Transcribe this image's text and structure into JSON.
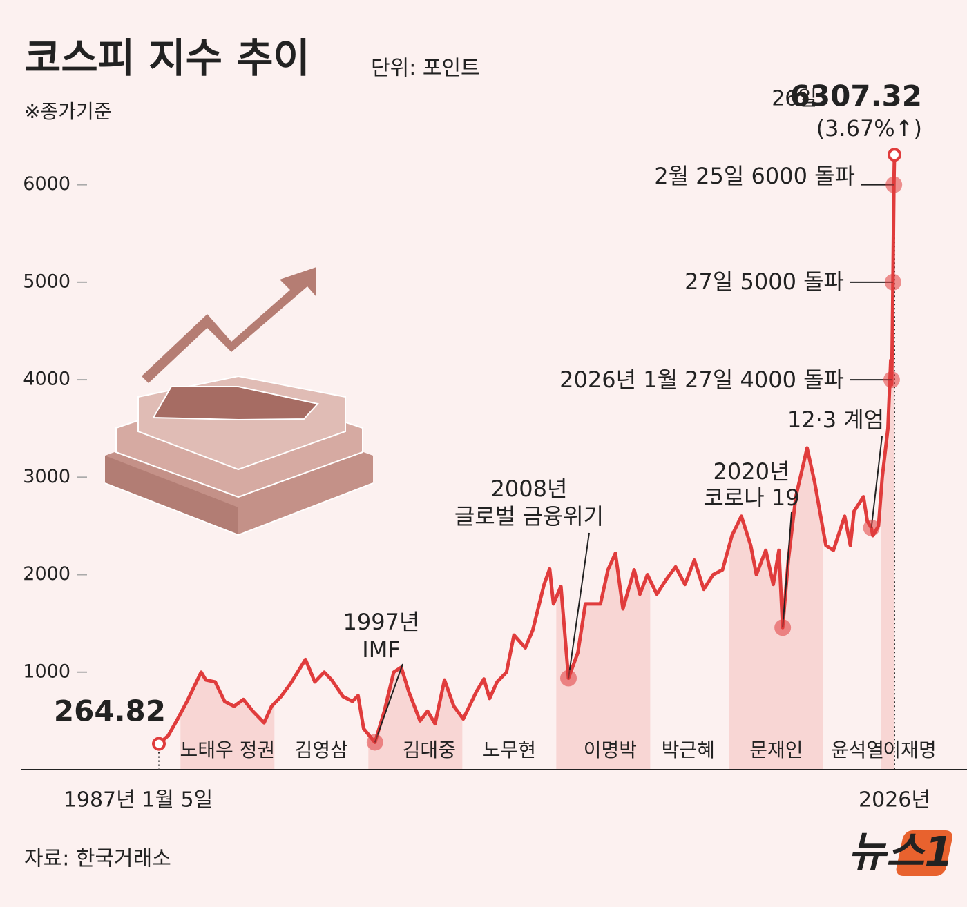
{
  "chart_data": {
    "type": "line",
    "title": "코스피 지수 추이",
    "unit": "단위: 포인트",
    "note": "※종가기준",
    "source": "자료: 한국거래소",
    "logo": "뉴스1",
    "color": "#e03c3c",
    "ylim": [
      0,
      6500
    ],
    "yticks": [
      1000,
      2000,
      3000,
      4000,
      5000,
      6000
    ],
    "xlim": [
      1987,
      2026.15
    ],
    "xticks": [
      {
        "value": 1987,
        "label": "1987년 1월 5일"
      },
      {
        "value": 2026.15,
        "label": "2026년"
      }
    ],
    "x": [
      1987,
      1987.5,
      1988,
      1988.5,
      1989.25,
      1989.5,
      1990,
      1990.5,
      1991,
      1991.5,
      1992,
      1992.6,
      1993,
      1993.5,
      1994,
      1994.8,
      1995.3,
      1995.8,
      1996.2,
      1996.8,
      1997.3,
      1997.6,
      1997.9,
      1998.5,
      1999,
      1999.5,
      1999.9,
      2000.3,
      2000.9,
      2001.3,
      2001.7,
      2002.2,
      2002.7,
      2003.2,
      2003.9,
      2004.3,
      2004.6,
      2005,
      2005.5,
      2005.9,
      2006.5,
      2006.9,
      2007.5,
      2007.8,
      2008,
      2008.4,
      2008.8,
      2009.3,
      2009.7,
      2010.5,
      2010.9,
      2011.3,
      2011.7,
      2012.3,
      2012.6,
      2013,
      2013.5,
      2014,
      2014.5,
      2015,
      2015.5,
      2016,
      2016.5,
      2017,
      2017.5,
      2018,
      2018.5,
      2018.8,
      2019.3,
      2019.7,
      2020,
      2020.2,
      2020.5,
      2020.9,
      2021.5,
      2021.9,
      2022.5,
      2022.9,
      2023.5,
      2023.8,
      2024,
      2024.5,
      2024.7,
      2024.92,
      2025,
      2025.3,
      2025.5,
      2025.8,
      2025.95,
      2026,
      2026.04,
      2026.07,
      2026.12,
      2026.15
    ],
    "values": [
      264.82,
      350,
      520,
      700,
      1000,
      920,
      900,
      700,
      650,
      720,
      600,
      480,
      650,
      750,
      880,
      1130,
      900,
      1000,
      920,
      750,
      700,
      760,
      420,
      280,
      600,
      1000,
      1050,
      800,
      500,
      600,
      470,
      920,
      650,
      520,
      800,
      930,
      730,
      900,
      1000,
      1380,
      1250,
      1430,
      1900,
      2060,
      1700,
      1880,
      938,
      1200,
      1700,
      1700,
      2050,
      2220,
      1650,
      2050,
      1800,
      2000,
      1800,
      1950,
      2080,
      1900,
      2150,
      1850,
      2000,
      2050,
      2400,
      2600,
      2300,
      2000,
      2250,
      1900,
      2250,
      1457,
      2150,
      2800,
      3300,
      2950,
      2300,
      2250,
      2600,
      2300,
      2650,
      2800,
      2550,
      2480,
      2400,
      2500,
      3000,
      3500,
      4200,
      3950,
      4500,
      5000,
      6000,
      6307.32
    ],
    "end_day": "26일",
    "end_change": "(3.67%↑)",
    "periods": [
      {
        "name": "노태우 정권",
        "start": 1988.15,
        "end": 1993.15,
        "shaded": true
      },
      {
        "name": "김영삼",
        "start": 1993.15,
        "end": 1998.15,
        "shaded": false
      },
      {
        "name": "김대중",
        "start": 1998.15,
        "end": 2003.15,
        "shaded": true
      },
      {
        "name": "노무현",
        "start": 2003.15,
        "end": 2008.15,
        "shaded": false
      },
      {
        "name": "이명박",
        "start": 2008.15,
        "end": 2013.15,
        "shaded": true
      },
      {
        "name": "박근혜",
        "start": 2013.15,
        "end": 2017.19,
        "shaded": false
      },
      {
        "name": "문재인",
        "start": 2017.36,
        "end": 2022.36,
        "shaded": true
      },
      {
        "name": "윤석열",
        "start": 2022.36,
        "end": 2025.26,
        "shaded": false
      },
      {
        "name": "이재명",
        "start": 2025.42,
        "end": 2026.15,
        "shaded": true
      }
    ],
    "annotations": [
      {
        "lines": [
          "1997년",
          "IMF"
        ],
        "x": 1998.5,
        "value": 280
      },
      {
        "lines": [
          "2008년",
          "글로벌 금융위기"
        ],
        "x": 2008.8,
        "value": 938
      },
      {
        "lines": [
          "2020년",
          "코로나 19"
        ],
        "x": 2020.2,
        "value": 1457
      },
      {
        "lines": [
          "12·3 계엄"
        ],
        "x": 2024.92,
        "value": 2480
      },
      {
        "lines": [
          "2026년 1월 27일 4000 돌파"
        ],
        "x": 2026,
        "value": 4000
      },
      {
        "lines": [
          "27일 5000 돌파"
        ],
        "x": 2026.07,
        "value": 5000
      },
      {
        "lines": [
          "2월 25일 6000 돌파"
        ],
        "x": 2026.12,
        "value": 6000
      }
    ]
  }
}
